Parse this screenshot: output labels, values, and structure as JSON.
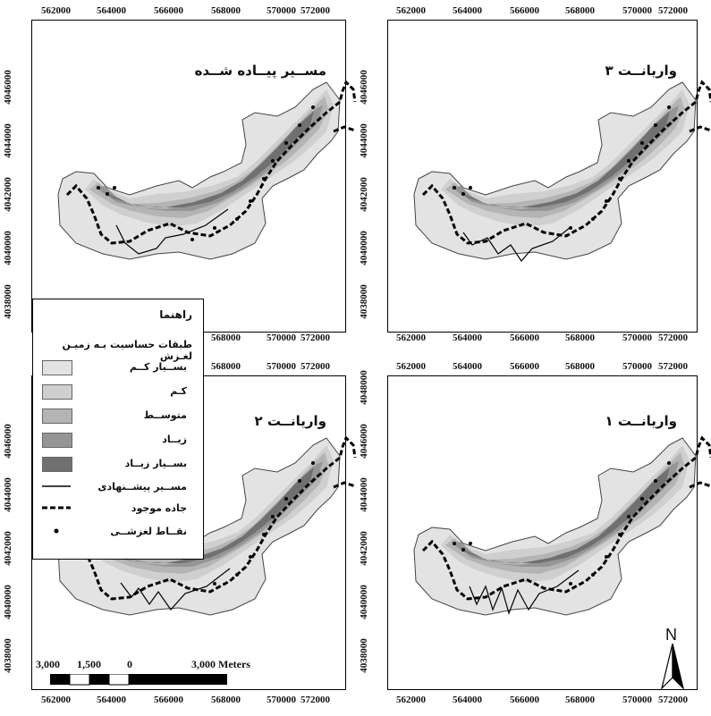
{
  "x_ticks": [
    "562000",
    "564000",
    "566000",
    "568000",
    "570000",
    "572000"
  ],
  "y_ticks": [
    "4038000",
    "4040000",
    "4042000",
    "4044000",
    "4046000"
  ],
  "panels": [
    {
      "id": "tl",
      "title": "مســیر پیــاده شــده"
    },
    {
      "id": "tr",
      "title": "واریانــت ۳"
    },
    {
      "id": "bl",
      "title": "واریانــت ۲"
    },
    {
      "id": "br",
      "title": "واریانــت ۱"
    }
  ],
  "legend": {
    "title": "راهنما",
    "subtitle": "طبقات حساسیت بـه زمیـن لغـزش",
    "classes": [
      {
        "label": "بســیار کــم",
        "color": "#e3e3e3"
      },
      {
        "label": "کـم",
        "color": "#cfcfcf"
      },
      {
        "label": "متوســط",
        "color": "#b4b4b4"
      },
      {
        "label": "زیــاد",
        "color": "#959595"
      },
      {
        "label": "بســیار زیــاد",
        "color": "#707070"
      }
    ],
    "proposed_route": "مســیر پیشــنهادی",
    "existing_road": "جاده موجود",
    "landslide_points": "نقــاط لغزشــی"
  },
  "scalebar": {
    "labels": [
      "3,000",
      "1,500",
      "0",
      "3,000 Meters"
    ]
  },
  "north_label": "N",
  "y_ticks_extra": [
    "4048000"
  ]
}
